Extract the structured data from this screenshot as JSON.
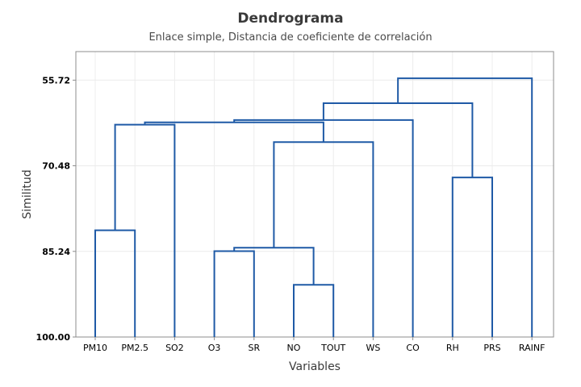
{
  "chart_data": {
    "type": "dendrogram",
    "title": "Dendrograma",
    "subtitle": "Enlace simple, Distancia de coeficiente de correlación",
    "xlabel": "Variables",
    "ylabel": "Similitud",
    "ylim": [
      100.0,
      50.8
    ],
    "yticks": [
      "55.72",
      "70.48",
      "85.24",
      "100.00"
    ],
    "ytick_values": [
      55.72,
      70.48,
      85.24,
      100.0
    ],
    "leaves": [
      "PM10",
      "PM2.5",
      "SO2",
      "O3",
      "SR",
      "NO",
      "TOUT",
      "WS",
      "CO",
      "RH",
      "PRS",
      "RAINF"
    ],
    "merges": [
      {
        "left": "PM10",
        "right": "PM2.5",
        "similarity": 81.6
      },
      {
        "left": "NO",
        "right": "TOUT",
        "similarity": 91.0
      },
      {
        "left": "O3",
        "right": "SR",
        "similarity": 85.2
      },
      {
        "left": "O3+SR",
        "right": "NO+TOUT",
        "similarity": 84.6
      },
      {
        "left": "O3+SR+NO+TOUT",
        "right": "WS",
        "similarity": 66.4
      },
      {
        "left": "PM10+PM2.5",
        "right": "SO2",
        "similarity": 63.4
      },
      {
        "left": "PM10+PM2.5+SO2",
        "right": "O3+SR+NO+TOUT+WS",
        "similarity": 63.0
      },
      {
        "left": "PM10+...+WS",
        "right": "CO",
        "similarity": 62.6
      },
      {
        "left": "RH",
        "right": "PRS",
        "similarity": 72.5
      },
      {
        "left": "PM10+...+CO",
        "right": "RH+PRS",
        "similarity": 59.7
      },
      {
        "left": "PM10+...+PRS",
        "right": "RAINF",
        "similarity": 55.4
      }
    ],
    "grid": true,
    "legend": "none",
    "colors": {
      "tree": "#1f5aa6",
      "frame": "#8c8c8c",
      "grid": "#ececec"
    }
  }
}
